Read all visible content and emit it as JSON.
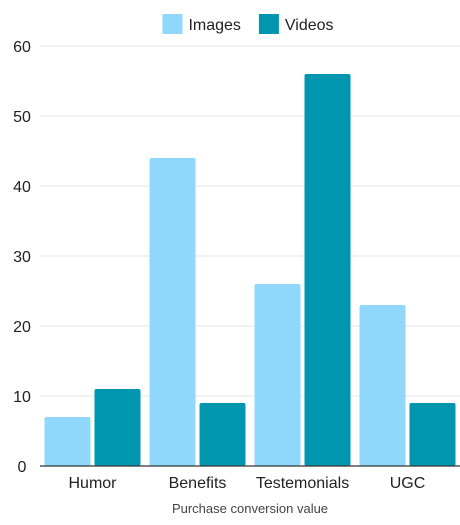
{
  "chart_data": {
    "type": "bar",
    "categories": [
      "Humor",
      "Benefits",
      "Testemonials",
      "UGC"
    ],
    "series": [
      {
        "name": "Images",
        "color": "#8fd8fb",
        "values": [
          7,
          44,
          26,
          23
        ]
      },
      {
        "name": "Videos",
        "color": "#0096b0",
        "values": [
          11,
          9,
          56,
          9
        ]
      }
    ],
    "title": "",
    "xlabel": "Purchase conversion value",
    "ylabel": "",
    "ylim": [
      0,
      60
    ],
    "yticks": [
      0,
      10,
      20,
      30,
      40,
      50,
      60
    ],
    "grid": true,
    "legend_position": "top-center"
  }
}
